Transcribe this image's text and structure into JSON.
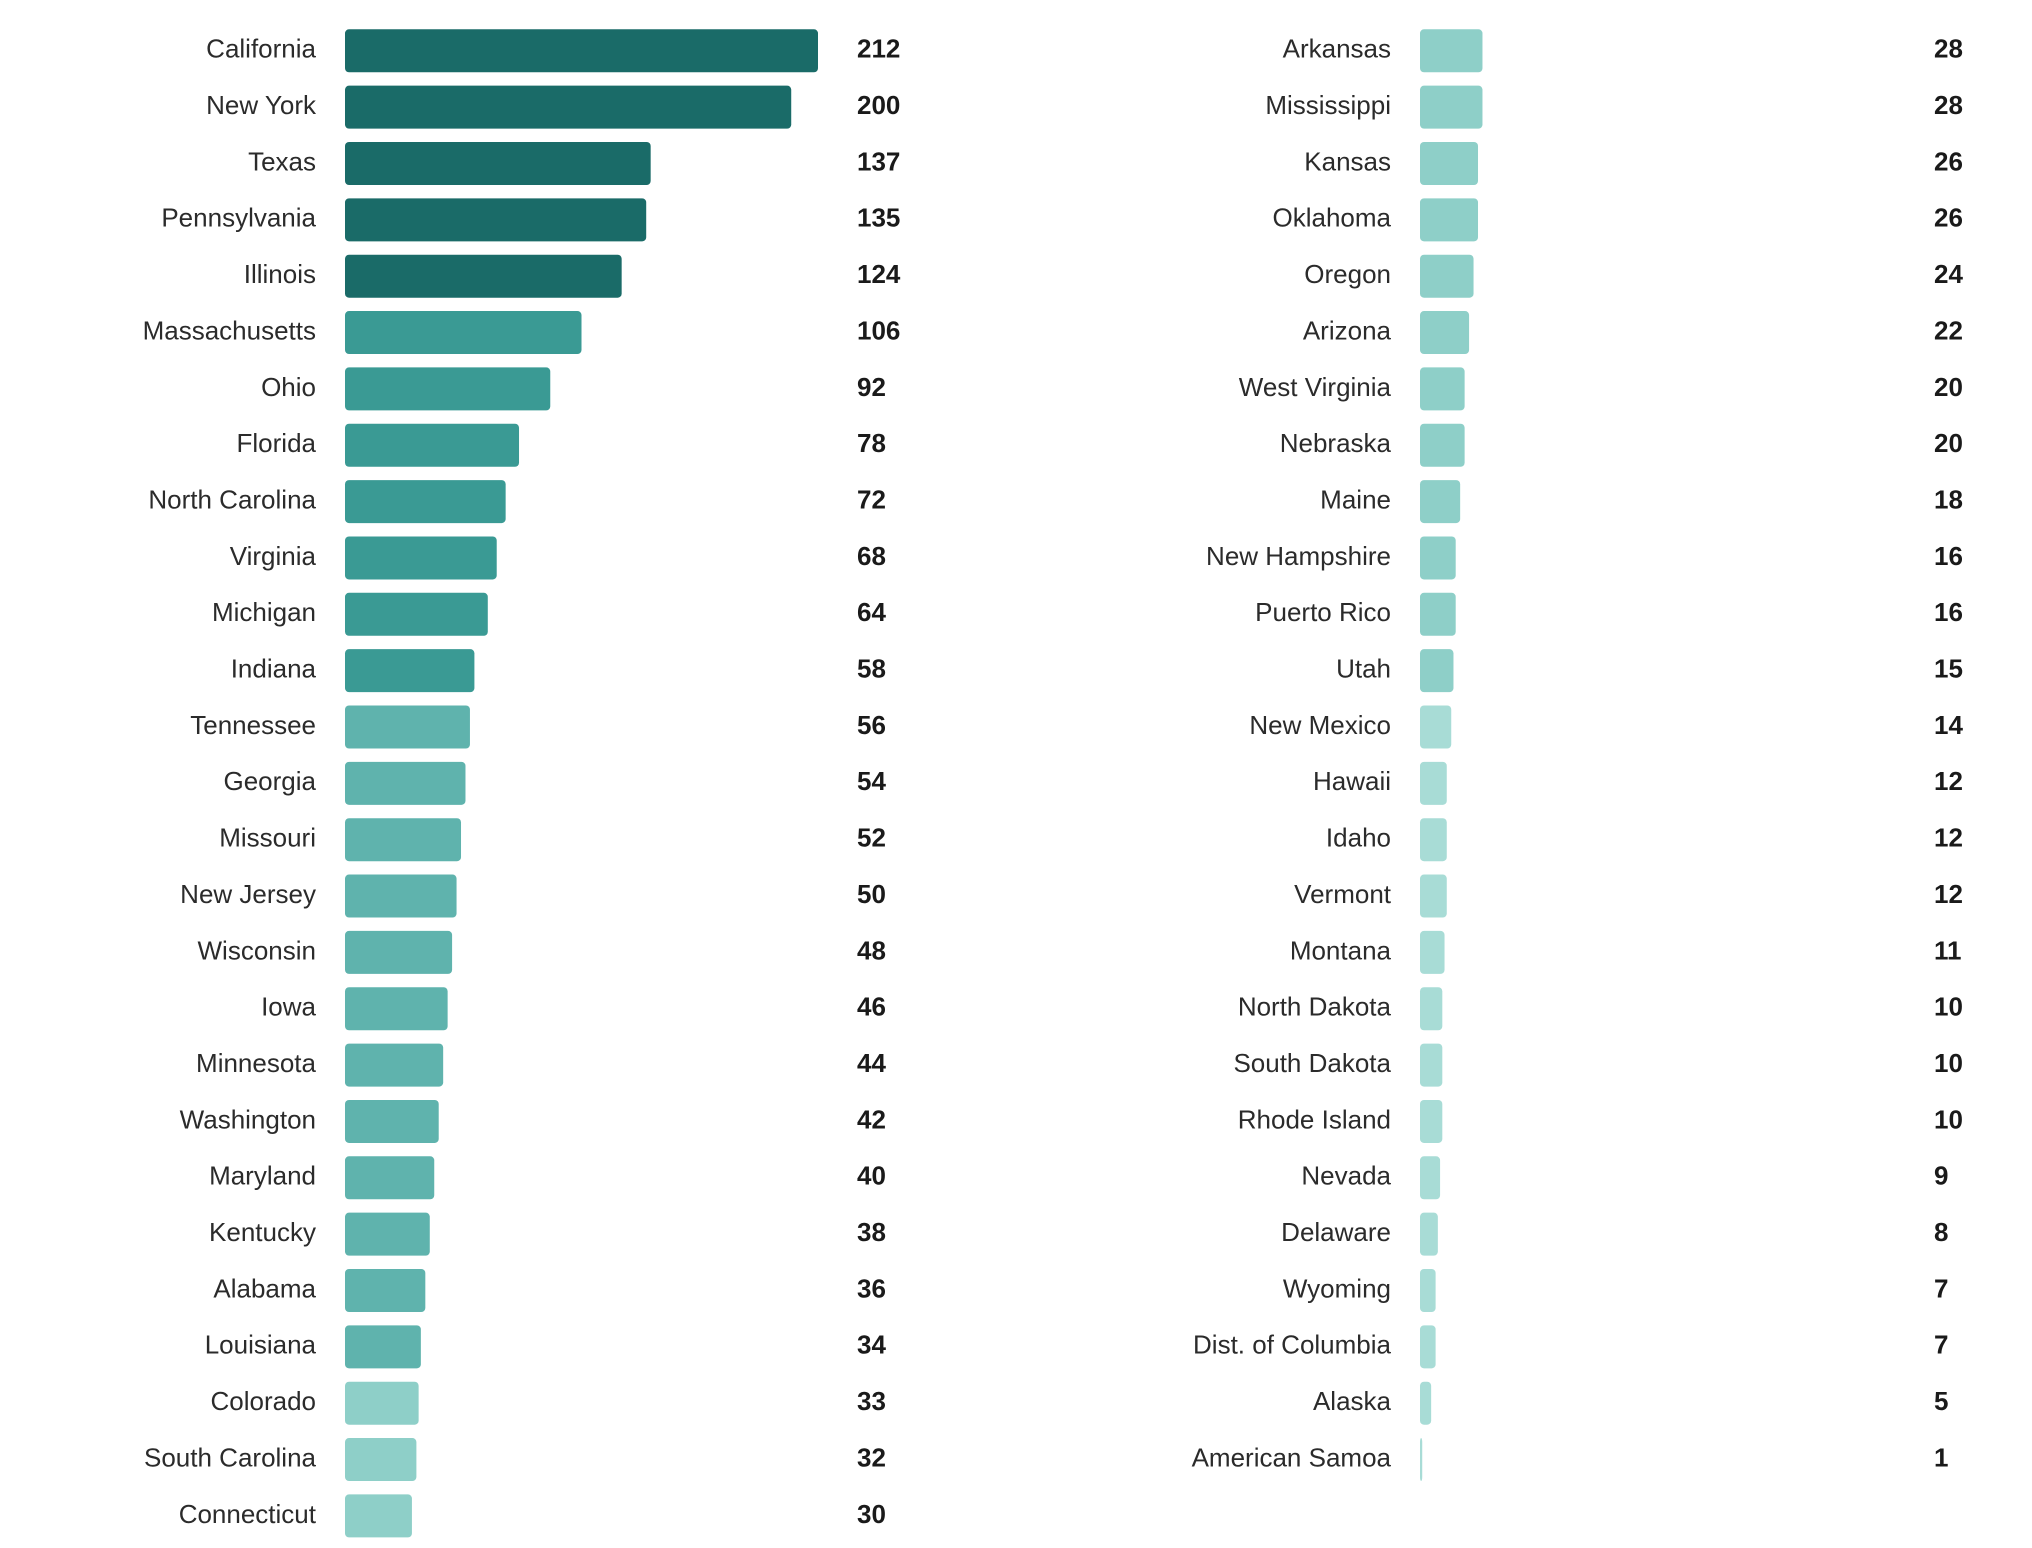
{
  "chart_data": {
    "type": "bar",
    "orientation": "horizontal",
    "categories": [
      "California",
      "New York",
      "Texas",
      "Pennsylvania",
      "Illinois",
      "Massachusetts",
      "Ohio",
      "Florida",
      "North Carolina",
      "Virginia",
      "Michigan",
      "Indiana",
      "Tennessee",
      "Georgia",
      "Missouri",
      "New Jersey",
      "Wisconsin",
      "Iowa",
      "Minnesota",
      "Washington",
      "Maryland",
      "Kentucky",
      "Alabama",
      "Louisiana",
      "Colorado",
      "South Carolina",
      "Connecticut",
      "Arkansas",
      "Mississippi",
      "Kansas",
      "Oklahoma",
      "Oregon",
      "Arizona",
      "West Virginia",
      "Nebraska",
      "Maine",
      "New Hampshire",
      "Puerto Rico",
      "Utah",
      "New Mexico",
      "Hawaii",
      "Idaho",
      "Vermont",
      "Montana",
      "North Dakota",
      "South Dakota",
      "Rhode Island",
      "Nevada",
      "Delaware",
      "Wyoming",
      "Dist. of Columbia",
      "Alaska",
      "American Samoa"
    ],
    "values": [
      212,
      200,
      137,
      135,
      124,
      106,
      92,
      78,
      72,
      68,
      64,
      58,
      56,
      54,
      52,
      50,
      48,
      46,
      44,
      42,
      40,
      38,
      36,
      34,
      33,
      32,
      30,
      28,
      28,
      26,
      26,
      24,
      22,
      20,
      20,
      18,
      16,
      16,
      15,
      14,
      12,
      12,
      12,
      11,
      10,
      10,
      10,
      9,
      8,
      7,
      7,
      5,
      1
    ],
    "colors": [
      "#1a6b68",
      "#1a6b68",
      "#1a6b68",
      "#1a6b68",
      "#1a6b68",
      "#3a9a94",
      "#3a9a94",
      "#3a9a94",
      "#3a9a94",
      "#3a9a94",
      "#3a9a94",
      "#3a9a94",
      "#5fb3ad",
      "#5fb3ad",
      "#5fb3ad",
      "#5fb3ad",
      "#5fb3ad",
      "#5fb3ad",
      "#5fb3ad",
      "#5fb3ad",
      "#5fb3ad",
      "#5fb3ad",
      "#5fb3ad",
      "#5fb3ad",
      "#8ecfc8",
      "#8ecfc8",
      "#8ecfc8",
      "#8ecfc8",
      "#8ecfc8",
      "#8ecfc8",
      "#8ecfc8",
      "#8ecfc8",
      "#8ecfc8",
      "#8ecfc8",
      "#8ecfc8",
      "#8ecfc8",
      "#8ecfc8",
      "#8ecfc8",
      "#8ecfc8",
      "#a8dcd6",
      "#a8dcd6",
      "#a8dcd6",
      "#a8dcd6",
      "#a8dcd6",
      "#a8dcd6",
      "#a8dcd6",
      "#a8dcd6",
      "#a8dcd6",
      "#a8dcd6",
      "#a8dcd6",
      "#a8dcd6",
      "#a8dcd6",
      "#a8dcd6"
    ]
  }
}
